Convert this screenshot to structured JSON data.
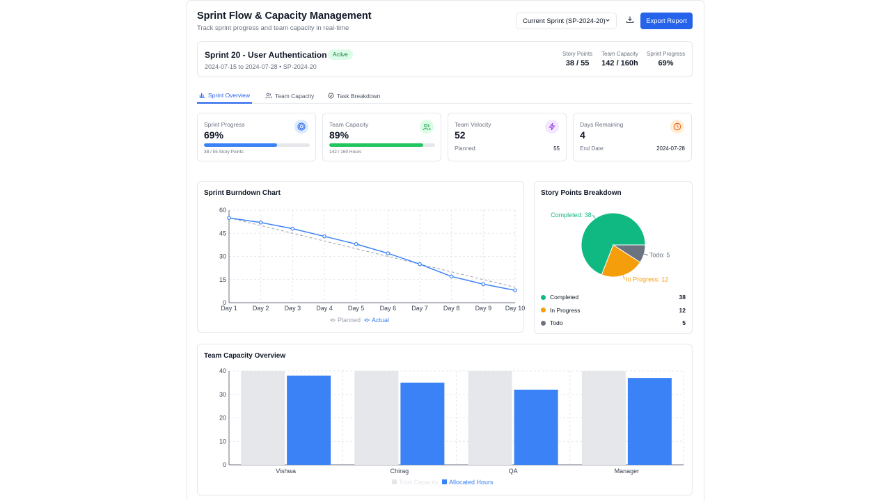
{
  "header": {
    "title": "Sprint Flow & Capacity Management",
    "subtitle": "Track sprint progress and team capacity in real-time",
    "sprint_select": "Current Sprint (SP-2024-20)",
    "export_label": "Export Report"
  },
  "sprint": {
    "name": "Sprint 20 - User Authentication",
    "status": "Active",
    "dates": "2024-07-15 to 2024-07-28 • SP-2024-20",
    "stats": [
      {
        "label": "Story Points",
        "value": "38 / 55"
      },
      {
        "label": "Team Capacity",
        "value": "142 / 160h"
      },
      {
        "label": "Sprint Progress",
        "value": "69%"
      }
    ]
  },
  "tabs": [
    {
      "label": "Sprint Overview",
      "icon": "bar-chart-icon"
    },
    {
      "label": "Team Capacity",
      "icon": "users-icon"
    },
    {
      "label": "Task Breakdown",
      "icon": "check-circle-icon"
    }
  ],
  "metrics": {
    "progress": {
      "label": "Sprint Progress",
      "value": "69%",
      "fraction": 0.69,
      "sub": "38 / 55 Story Points",
      "color": "#3b82f6"
    },
    "capacity": {
      "label": "Team Capacity",
      "value": "89%",
      "fraction": 0.89,
      "sub": "142 / 160 Hours",
      "color": "#22c55e"
    },
    "velocity": {
      "label": "Team Velocity",
      "value": "52",
      "row_label": "Planned:",
      "row_value": "55"
    },
    "days": {
      "label": "Days Remaining",
      "value": "4",
      "row_label": "End Date:",
      "row_value": "2024-07-28"
    }
  },
  "chart_data": [
    {
      "type": "line",
      "title": "Sprint Burndown Chart",
      "x": [
        "Day 1",
        "Day 2",
        "Day 3",
        "Day 4",
        "Day 5",
        "Day 6",
        "Day 7",
        "Day 8",
        "Day 9",
        "Day 10"
      ],
      "series": [
        {
          "name": "Planned",
          "values": [
            55,
            50,
            45,
            40,
            35,
            30,
            25,
            20,
            15,
            10
          ],
          "color": "#9ca3af",
          "dashed": true
        },
        {
          "name": "Actual",
          "values": [
            55,
            52,
            48,
            43,
            38,
            32,
            25,
            17,
            12,
            8
          ],
          "color": "#3b82f6"
        }
      ],
      "yticks": [
        0,
        15,
        30,
        45,
        60
      ],
      "ylim": [
        0,
        60
      ],
      "grid": true,
      "legend": "bottom"
    },
    {
      "type": "pie",
      "title": "Story Points Breakdown",
      "slices": [
        {
          "name": "Completed",
          "value": 38,
          "color": "#10b981",
          "label": "Completed: 38"
        },
        {
          "name": "In Progress",
          "value": 12,
          "color": "#f59e0b",
          "label": "In Progress: 12"
        },
        {
          "name": "Todo",
          "value": 5,
          "color": "#6b7280",
          "label": "Todo: 5"
        }
      ],
      "legend": "bottom"
    },
    {
      "type": "bar",
      "title": "Team Capacity Overview",
      "categories": [
        "Vishwa",
        "Chirag",
        "QA",
        "Manager"
      ],
      "series": [
        {
          "name": "Total Capacity",
          "values": [
            40,
            40,
            40,
            40
          ],
          "color": "#e5e7eb"
        },
        {
          "name": "Allocated Hours",
          "values": [
            38,
            35,
            32,
            37
          ],
          "color": "#3b82f6"
        }
      ],
      "yticks": [
        0,
        10,
        20,
        30,
        40
      ],
      "ylim": [
        0,
        40
      ],
      "grid": true,
      "legend": "bottom"
    }
  ]
}
